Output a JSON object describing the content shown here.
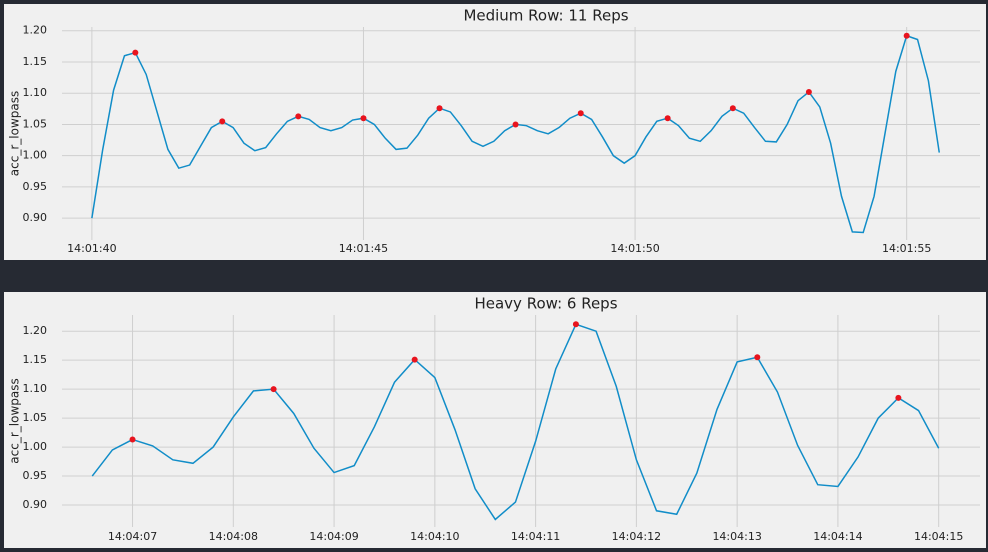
{
  "chart_data": [
    {
      "type": "line",
      "title": "Medium Row: 11 Reps",
      "y_label": "acc_r_lowpass",
      "grid": true,
      "xlim": [
        50499.45,
        50516.35
      ],
      "ylim": [
        0.865,
        1.206
      ],
      "xticks": [
        {
          "value": 50500,
          "label": "14:01:40"
        },
        {
          "value": 50505,
          "label": "14:01:45"
        },
        {
          "value": 50510,
          "label": "14:01:50"
        },
        {
          "value": 50515,
          "label": "14:01:55"
        }
      ],
      "yticks": [
        {
          "value": 0.9,
          "label": "0.90"
        },
        0.95,
        {
          "value": 1.0,
          "label": "1.00"
        },
        1.05,
        {
          "value": 1.1,
          "label": "1.10"
        },
        1.15,
        {
          "value": 1.2,
          "label": "1.20"
        }
      ],
      "series": [
        {
          "color": "#118dc8",
          "marker": "line",
          "x": [
            50500,
            50500.2,
            50500.4,
            50500.6,
            50500.8,
            50501,
            50501.2,
            50501.4,
            50501.6,
            50501.8,
            50502,
            50502.2,
            50502.4,
            50502.6,
            50502.8,
            50503,
            50503.2,
            50503.4,
            50503.6,
            50503.8,
            50504,
            50504.2,
            50504.4,
            50504.6,
            50504.8,
            50505,
            50505.2,
            50505.4,
            50505.6,
            50505.8,
            50506,
            50506.2,
            50506.4,
            50506.6,
            50506.8,
            50507,
            50507.2,
            50507.4,
            50507.6,
            50507.8,
            50508,
            50508.2,
            50508.4,
            50508.6,
            50508.8,
            50509,
            50509.2,
            50509.4,
            50509.6,
            50509.8,
            50510,
            50510.2,
            50510.4,
            50510.6,
            50510.8,
            50511,
            50511.2,
            50511.4,
            50511.6,
            50511.8,
            50512,
            50512.2,
            50512.4,
            50512.6,
            50512.8,
            50513,
            50513.2,
            50513.4,
            50513.6,
            50513.8,
            50514,
            50514.2,
            50514.4,
            50514.6,
            50514.8,
            50515,
            50515.2,
            50515.4,
            50515.6
          ],
          "values": [
            0.9,
            1.01,
            1.105,
            1.16,
            1.165,
            1.13,
            1.07,
            1.01,
            0.98,
            0.985,
            1.015,
            1.045,
            1.055,
            1.045,
            1.02,
            1.008,
            1.013,
            1.035,
            1.055,
            1.063,
            1.058,
            1.045,
            1.04,
            1.045,
            1.057,
            1.06,
            1.05,
            1.028,
            1.01,
            1.012,
            1.033,
            1.06,
            1.076,
            1.07,
            1.048,
            1.023,
            1.015,
            1.023,
            1.04,
            1.05,
            1.048,
            1.04,
            1.035,
            1.045,
            1.06,
            1.068,
            1.058,
            1.03,
            1.0,
            0.988,
            1.0,
            1.03,
            1.055,
            1.06,
            1.048,
            1.028,
            1.023,
            1.04,
            1.063,
            1.076,
            1.068,
            1.045,
            1.023,
            1.022,
            1.05,
            1.088,
            1.102,
            1.078,
            1.02,
            0.935,
            0.878,
            0.877,
            0.935,
            1.035,
            1.135,
            1.192,
            1.186,
            1.12,
            1.005
          ]
        },
        {
          "color": "#e8141e",
          "marker": "dot",
          "x": [
            50500.8,
            50502.4,
            50503.8,
            50505,
            50506.4,
            50507.8,
            50509,
            50510.6,
            50511.8,
            50513.2,
            50515
          ],
          "values": [
            1.165,
            1.055,
            1.063,
            1.06,
            1.076,
            1.05,
            1.068,
            1.06,
            1.076,
            1.102,
            1.192
          ]
        }
      ]
    },
    {
      "type": "line",
      "title": "Heavy Row: 6 Reps",
      "y_label": "acc_r_lowpass",
      "grid": true,
      "xlim": [
        50646.3,
        50655.41
      ],
      "ylim": [
        0.862,
        1.228
      ],
      "xticks": [
        {
          "value": 50647,
          "label": "14:04:07"
        },
        {
          "value": 50648,
          "label": "14:04:08"
        },
        {
          "value": 50649,
          "label": "14:04:09"
        },
        {
          "value": 50650,
          "label": "14:04:10"
        },
        {
          "value": 50651,
          "label": "14:04:11"
        },
        {
          "value": 50652,
          "label": "14:04:12"
        },
        {
          "value": 50653,
          "label": "14:04:13"
        },
        {
          "value": 50654,
          "label": "14:04:14"
        },
        {
          "value": 50655,
          "label": "14:04:15"
        }
      ],
      "yticks": [
        {
          "value": 0.9,
          "label": "0.90"
        },
        0.95,
        {
          "value": 1.0,
          "label": "1.00"
        },
        1.05,
        {
          "value": 1.1,
          "label": "1.10"
        },
        1.15,
        {
          "value": 1.2,
          "label": "1.20"
        }
      ],
      "series": [
        {
          "color": "#118dc8",
          "marker": "line",
          "x": [
            50646.6,
            50646.8,
            50647,
            50647.2,
            50647.4,
            50647.6,
            50647.8,
            50648,
            50648.2,
            50648.4,
            50648.6,
            50648.8,
            50649,
            50649.2,
            50649.4,
            50649.6,
            50649.8,
            50650,
            50650.2,
            50650.4,
            50650.6,
            50650.8,
            50651,
            50651.2,
            50651.4,
            50651.6,
            50651.8,
            50652,
            50652.2,
            50652.4,
            50652.6,
            50652.8,
            50653,
            50653.2,
            50653.4,
            50653.6,
            50653.8,
            50654,
            50654.2,
            50654.4,
            50654.6,
            50654.8,
            50655
          ],
          "values": [
            0.95,
            0.995,
            1.013,
            1.002,
            0.978,
            0.972,
            1.0,
            1.052,
            1.097,
            1.1,
            1.058,
            0.998,
            0.956,
            0.968,
            1.035,
            1.112,
            1.151,
            1.12,
            1.03,
            0.928,
            0.875,
            0.905,
            1.01,
            1.135,
            1.212,
            1.2,
            1.105,
            0.978,
            0.89,
            0.884,
            0.955,
            1.065,
            1.147,
            1.155,
            1.095,
            1.003,
            0.935,
            0.932,
            0.983,
            1.05,
            1.085,
            1.063,
            0.998
          ]
        },
        {
          "color": "#e8141e",
          "marker": "dot",
          "x": [
            50647,
            50648.4,
            50649.8,
            50651.4,
            50653.2,
            50654.6
          ],
          "values": [
            1.013,
            1.1,
            1.151,
            1.212,
            1.155,
            1.085
          ]
        }
      ]
    }
  ]
}
